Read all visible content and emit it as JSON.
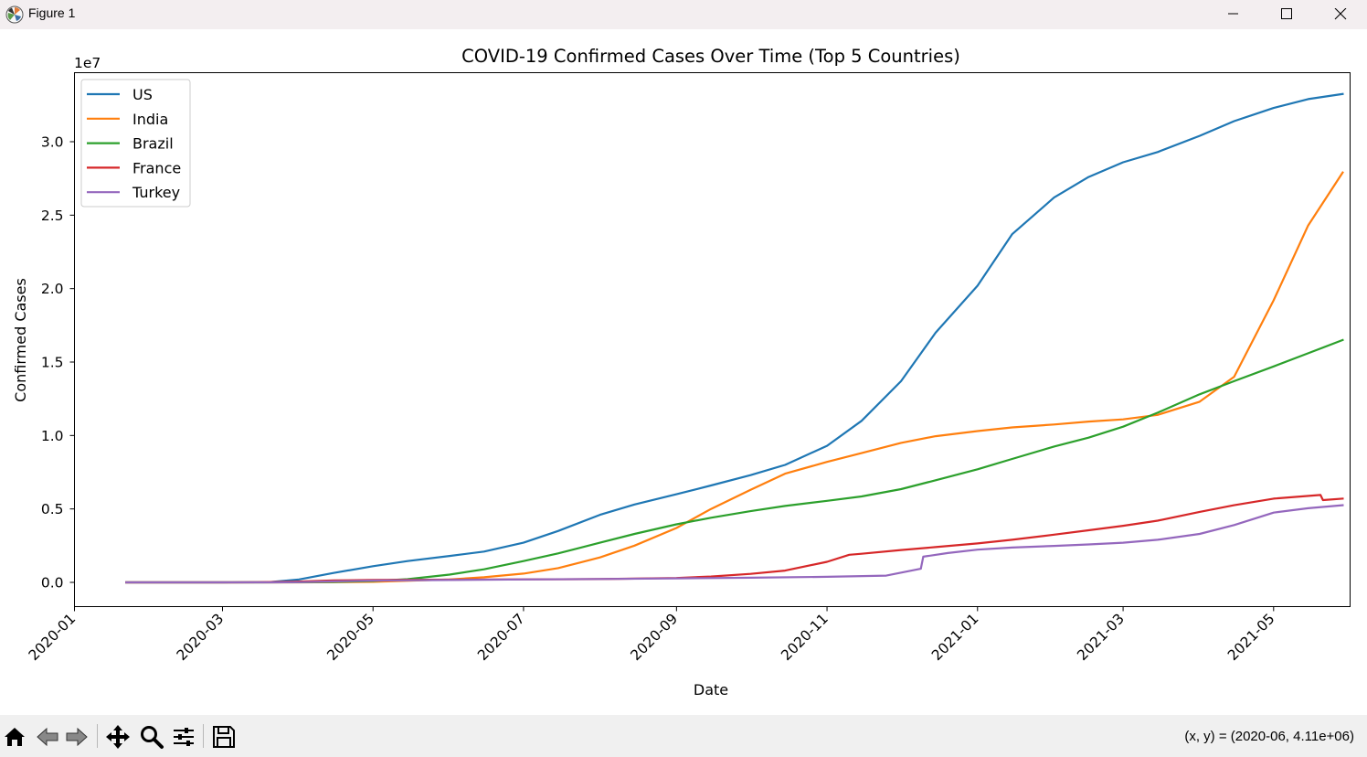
{
  "window": {
    "title": "Figure 1"
  },
  "toolbar": {
    "buttons": [
      "home-icon",
      "back-icon",
      "forward-icon",
      "pan-icon",
      "zoom-icon",
      "configure-icon",
      "save-icon"
    ],
    "coords_text": "(x, y) = (2020-06, 4.11e+06)"
  },
  "chart_data": {
    "type": "line",
    "title": "COVID-19 Confirmed Cases Over Time (Top 5 Countries)",
    "xlabel": "Date",
    "ylabel": "Confirmed Cases",
    "y_offset_text": "1e7",
    "xlim": [
      "2020-01-01",
      "2021-06-01"
    ],
    "ylim": [
      -1650000,
      34700000
    ],
    "x_ticks": [
      "2020-01",
      "2020-03",
      "2020-05",
      "2020-07",
      "2020-09",
      "2020-11",
      "2021-01",
      "2021-03",
      "2021-05"
    ],
    "y_ticks": [
      0,
      5000000,
      10000000,
      15000000,
      20000000,
      25000000,
      30000000
    ],
    "y_tick_labels": [
      "0.0",
      "0.5",
      "1.0",
      "1.5",
      "2.0",
      "2.5",
      "3.0"
    ],
    "grid": false,
    "legend_position": "top-left",
    "series": [
      {
        "name": "US",
        "color": "#1f77b4",
        "points": [
          [
            "2020-01-22",
            0
          ],
          [
            "2020-03-01",
            100
          ],
          [
            "2020-03-20",
            20000
          ],
          [
            "2020-04-01",
            200000
          ],
          [
            "2020-04-15",
            640000
          ],
          [
            "2020-05-01",
            1100000
          ],
          [
            "2020-05-15",
            1450000
          ],
          [
            "2020-06-01",
            1800000
          ],
          [
            "2020-06-15",
            2100000
          ],
          [
            "2020-07-01",
            2700000
          ],
          [
            "2020-07-15",
            3500000
          ],
          [
            "2020-08-01",
            4600000
          ],
          [
            "2020-08-15",
            5300000
          ],
          [
            "2020-09-01",
            6000000
          ],
          [
            "2020-09-15",
            6600000
          ],
          [
            "2020-10-01",
            7300000
          ],
          [
            "2020-10-15",
            8000000
          ],
          [
            "2020-11-01",
            9300000
          ],
          [
            "2020-11-15",
            11000000
          ],
          [
            "2020-12-01",
            13700000
          ],
          [
            "2020-12-15",
            17000000
          ],
          [
            "2021-01-01",
            20200000
          ],
          [
            "2021-01-15",
            23700000
          ],
          [
            "2021-02-01",
            26200000
          ],
          [
            "2021-02-15",
            27600000
          ],
          [
            "2021-03-01",
            28600000
          ],
          [
            "2021-03-15",
            29300000
          ],
          [
            "2021-04-01",
            30400000
          ],
          [
            "2021-04-15",
            31400000
          ],
          [
            "2021-05-01",
            32300000
          ],
          [
            "2021-05-15",
            32900000
          ],
          [
            "2021-05-29",
            33250000
          ]
        ]
      },
      {
        "name": "India",
        "color": "#ff7f0e",
        "points": [
          [
            "2020-01-22",
            0
          ],
          [
            "2020-03-15",
            100
          ],
          [
            "2020-04-01",
            2000
          ],
          [
            "2020-05-01",
            35000
          ],
          [
            "2020-06-01",
            200000
          ],
          [
            "2020-06-15",
            350000
          ],
          [
            "2020-07-01",
            600000
          ],
          [
            "2020-07-15",
            970000
          ],
          [
            "2020-08-01",
            1700000
          ],
          [
            "2020-08-15",
            2500000
          ],
          [
            "2020-09-01",
            3700000
          ],
          [
            "2020-09-15",
            5000000
          ],
          [
            "2020-10-01",
            6300000
          ],
          [
            "2020-10-15",
            7400000
          ],
          [
            "2020-11-01",
            8200000
          ],
          [
            "2020-11-15",
            8800000
          ],
          [
            "2020-12-01",
            9500000
          ],
          [
            "2020-12-15",
            9950000
          ],
          [
            "2021-01-01",
            10300000
          ],
          [
            "2021-01-15",
            10550000
          ],
          [
            "2021-02-01",
            10750000
          ],
          [
            "2021-02-15",
            10950000
          ],
          [
            "2021-03-01",
            11100000
          ],
          [
            "2021-03-15",
            11400000
          ],
          [
            "2021-04-01",
            12300000
          ],
          [
            "2021-04-15",
            14000000
          ],
          [
            "2021-05-01",
            19200000
          ],
          [
            "2021-05-15",
            24300000
          ],
          [
            "2021-05-29",
            27900000
          ]
        ]
      },
      {
        "name": "Brazil",
        "color": "#2ca02c",
        "points": [
          [
            "2020-01-22",
            0
          ],
          [
            "2020-03-15",
            200
          ],
          [
            "2020-04-01",
            7000
          ],
          [
            "2020-04-15",
            28000
          ],
          [
            "2020-05-01",
            92000
          ],
          [
            "2020-05-15",
            220000
          ],
          [
            "2020-06-01",
            530000
          ],
          [
            "2020-06-15",
            890000
          ],
          [
            "2020-07-01",
            1450000
          ],
          [
            "2020-07-15",
            1970000
          ],
          [
            "2020-08-01",
            2700000
          ],
          [
            "2020-08-15",
            3300000
          ],
          [
            "2020-09-01",
            3950000
          ],
          [
            "2020-09-15",
            4400000
          ],
          [
            "2020-10-01",
            4850000
          ],
          [
            "2020-10-15",
            5200000
          ],
          [
            "2020-11-01",
            5550000
          ],
          [
            "2020-11-15",
            5850000
          ],
          [
            "2020-12-01",
            6350000
          ],
          [
            "2020-12-15",
            6950000
          ],
          [
            "2021-01-01",
            7700000
          ],
          [
            "2021-01-15",
            8400000
          ],
          [
            "2021-02-01",
            9250000
          ],
          [
            "2021-02-15",
            9850000
          ],
          [
            "2021-03-01",
            10600000
          ],
          [
            "2021-03-15",
            11550000
          ],
          [
            "2021-04-01",
            12800000
          ],
          [
            "2021-04-15",
            13700000
          ],
          [
            "2021-05-01",
            14700000
          ],
          [
            "2021-05-15",
            15600000
          ],
          [
            "2021-05-29",
            16500000
          ]
        ]
      },
      {
        "name": "France",
        "color": "#d62728",
        "points": [
          [
            "2020-01-22",
            0
          ],
          [
            "2020-03-01",
            100
          ],
          [
            "2020-03-15",
            5400
          ],
          [
            "2020-04-01",
            57000
          ],
          [
            "2020-04-15",
            131000
          ],
          [
            "2020-05-01",
            168000
          ],
          [
            "2020-06-01",
            189000
          ],
          [
            "2020-07-01",
            203000
          ],
          [
            "2020-08-01",
            225000
          ],
          [
            "2020-08-15",
            255000
          ],
          [
            "2020-09-01",
            300000
          ],
          [
            "2020-09-15",
            400000
          ],
          [
            "2020-10-01",
            580000
          ],
          [
            "2020-10-15",
            800000
          ],
          [
            "2020-11-01",
            1400000
          ],
          [
            "2020-11-10",
            1880000
          ],
          [
            "2020-11-15",
            1950000
          ],
          [
            "2020-12-01",
            2200000
          ],
          [
            "2020-12-15",
            2400000
          ],
          [
            "2021-01-01",
            2650000
          ],
          [
            "2021-01-15",
            2900000
          ],
          [
            "2021-02-01",
            3250000
          ],
          [
            "2021-02-15",
            3550000
          ],
          [
            "2021-03-01",
            3850000
          ],
          [
            "2021-03-15",
            4200000
          ],
          [
            "2021-04-01",
            4800000
          ],
          [
            "2021-04-15",
            5250000
          ],
          [
            "2021-05-01",
            5700000
          ],
          [
            "2021-05-20",
            5950000
          ],
          [
            "2021-05-21",
            5600000
          ],
          [
            "2021-05-29",
            5700000
          ]
        ]
      },
      {
        "name": "Turkey",
        "color": "#9467bd",
        "points": [
          [
            "2020-01-22",
            0
          ],
          [
            "2020-03-10",
            0
          ],
          [
            "2020-03-20",
            1000
          ],
          [
            "2020-04-01",
            15000
          ],
          [
            "2020-04-15",
            69000
          ],
          [
            "2020-05-01",
            122000
          ],
          [
            "2020-06-01",
            164000
          ],
          [
            "2020-07-01",
            201000
          ],
          [
            "2020-08-01",
            231000
          ],
          [
            "2020-09-01",
            271000
          ],
          [
            "2020-10-01",
            318000
          ],
          [
            "2020-11-01",
            380000
          ],
          [
            "2020-11-25",
            460000
          ],
          [
            "2020-12-09",
            925000
          ],
          [
            "2020-12-10",
            1750000
          ],
          [
            "2020-12-20",
            2000000
          ],
          [
            "2021-01-01",
            2230000
          ],
          [
            "2021-01-15",
            2370000
          ],
          [
            "2021-02-01",
            2480000
          ],
          [
            "2021-02-15",
            2580000
          ],
          [
            "2021-03-01",
            2700000
          ],
          [
            "2021-03-15",
            2900000
          ],
          [
            "2021-04-01",
            3300000
          ],
          [
            "2021-04-15",
            3900000
          ],
          [
            "2021-05-01",
            4750000
          ],
          [
            "2021-05-15",
            5050000
          ],
          [
            "2021-05-29",
            5250000
          ]
        ]
      }
    ]
  }
}
